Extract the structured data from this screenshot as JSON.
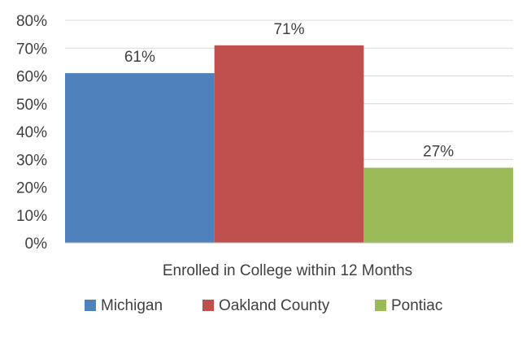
{
  "chart_data": {
    "type": "bar",
    "categories": [
      "Enrolled in College within 12 Months"
    ],
    "series": [
      {
        "name": "Michigan",
        "values": [
          61
        ],
        "color": "#4f81bd",
        "label": "61%"
      },
      {
        "name": "Oakland County",
        "values": [
          71
        ],
        "color": "#c0504d",
        "label": "71%"
      },
      {
        "name": "Pontiac",
        "values": [
          27
        ],
        "color": "#9bbb59",
        "label": "27%"
      }
    ],
    "title": "",
    "xlabel": "",
    "ylabel": "",
    "ylim": [
      0,
      80
    ],
    "yticks": [
      "0%",
      "10%",
      "20%",
      "30%",
      "40%",
      "50%",
      "60%",
      "70%",
      "80%"
    ],
    "grid": true,
    "legend_position": "bottom"
  }
}
